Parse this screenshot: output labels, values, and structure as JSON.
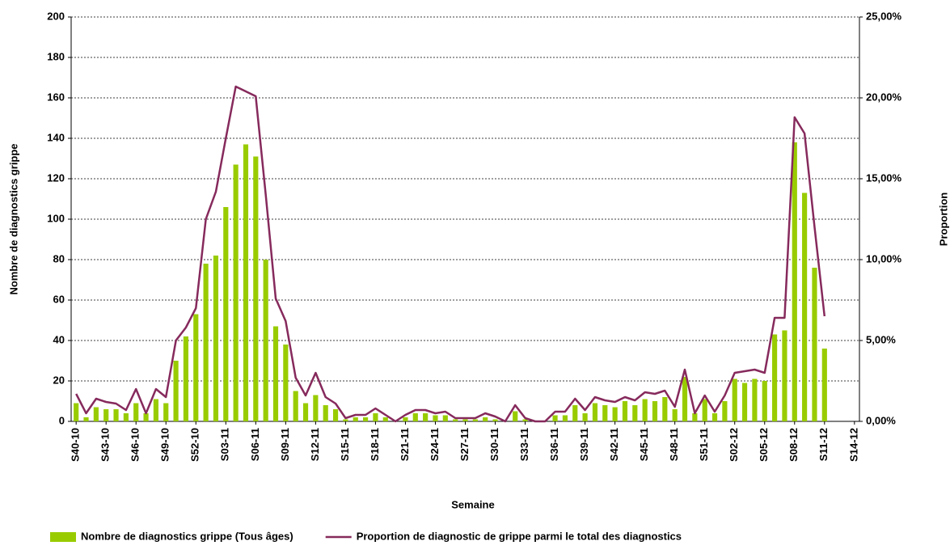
{
  "chart_data": {
    "type": "bar-line",
    "x_label": "Semaine",
    "y_label": "Nombre de diagnostics grippe",
    "y2_label": "Proportion",
    "categories": [
      "S40-10",
      null,
      null,
      "S43-10",
      null,
      null,
      "S46-10",
      null,
      null,
      "S49-10",
      null,
      null,
      "S52-10",
      null,
      null,
      "S03-11",
      null,
      null,
      "S06-11",
      null,
      null,
      "S09-11",
      null,
      null,
      "S12-11",
      null,
      null,
      "S15-11",
      null,
      null,
      "S18-11",
      null,
      null,
      "S21-11",
      null,
      null,
      "S24-11",
      null,
      null,
      "S27-11",
      null,
      null,
      "S30-11",
      null,
      null,
      "S33-11",
      null,
      null,
      "S36-11",
      null,
      null,
      "S39-11",
      null,
      null,
      "S42-11",
      null,
      null,
      "S45-11",
      null,
      null,
      "S48-11",
      null,
      null,
      "S51-11",
      null,
      null,
      "S02-12",
      null,
      null,
      "S05-12",
      null,
      null,
      "S08-12",
      null,
      null,
      "S11-12",
      null,
      null,
      "S14-12"
    ],
    "series": [
      {
        "name": "Nombre de diagnostics grippe (Tous âges)",
        "type": "bar",
        "color": "#99cc00",
        "values": [
          9,
          2,
          7,
          6,
          6,
          4,
          9,
          4,
          11,
          9,
          30,
          42,
          53,
          78,
          82,
          106,
          127,
          137,
          131,
          80,
          47,
          38,
          15,
          9,
          13,
          8,
          6,
          1,
          2,
          2,
          4,
          2,
          0,
          2,
          4,
          4,
          3,
          3,
          1,
          1,
          1,
          2,
          1,
          0,
          5,
          1,
          0,
          0,
          3,
          3,
          8,
          4,
          9,
          8,
          7,
          10,
          8,
          11,
          10,
          12,
          6,
          22,
          4,
          11,
          4,
          10,
          21,
          19,
          21,
          20,
          43,
          45,
          138,
          113,
          76,
          36,
          null,
          null,
          null
        ]
      },
      {
        "name": "Proportion de diagnostic de grippe parmi le total des diagnostics",
        "type": "line",
        "axis": "y2",
        "color": "#862a5c",
        "values": [
          1.7,
          0.5,
          1.4,
          1.2,
          1.1,
          0.7,
          2.0,
          0.5,
          2.0,
          1.5,
          5.0,
          5.8,
          7.0,
          12.5,
          14.2,
          17.5,
          20.7,
          20.4,
          20.1,
          14.0,
          7.6,
          6.2,
          2.7,
          1.6,
          3.0,
          1.5,
          1.1,
          0.2,
          0.4,
          0.4,
          0.8,
          0.4,
          0,
          0.4,
          0.7,
          0.7,
          0.5,
          0.6,
          0.2,
          0.2,
          0.2,
          0.5,
          0.3,
          0,
          1.0,
          0.2,
          0,
          0,
          0.6,
          0.6,
          1.4,
          0.7,
          1.5,
          1.3,
          1.2,
          1.5,
          1.3,
          1.8,
          1.7,
          1.9,
          0.9,
          3.2,
          0.5,
          1.6,
          0.6,
          1.6,
          3.0,
          3.1,
          3.2,
          3.0,
          6.4,
          6.4,
          18.8,
          17.8,
          12.0,
          6.5,
          null,
          null,
          null
        ]
      }
    ],
    "ylim": [
      0,
      200
    ],
    "yticks": [
      0,
      20,
      40,
      60,
      80,
      100,
      120,
      140,
      160,
      180,
      200
    ],
    "y2lim": [
      0,
      25
    ],
    "y2ticks": [
      {
        "value": 0,
        "label": "0,00%"
      },
      {
        "value": 5,
        "label": "5,00%"
      },
      {
        "value": 10,
        "label": "10,00%"
      },
      {
        "value": 15,
        "label": "15,00%"
      },
      {
        "value": 20,
        "label": "20,00%"
      },
      {
        "value": 25,
        "label": "25,00%"
      }
    ],
    "grid": true,
    "legend": "bottom"
  }
}
